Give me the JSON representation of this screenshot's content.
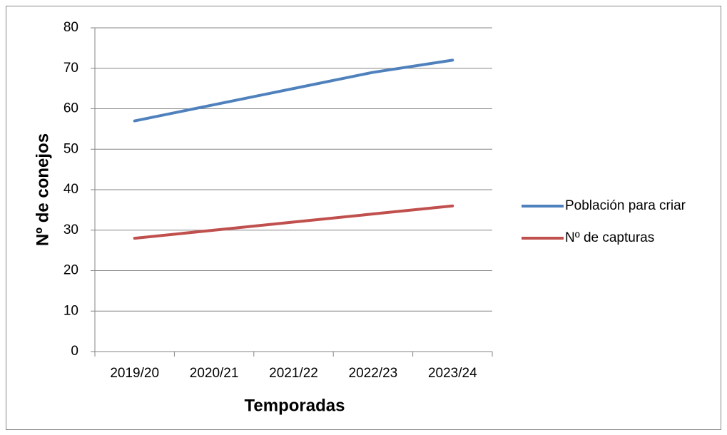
{
  "chart_data": {
    "type": "line",
    "xlabel": "Temporadas",
    "ylabel": "Nº de conejos",
    "categories": [
      "2019/20",
      "2020/21",
      "2021/22",
      "2022/23",
      "2023/24"
    ],
    "series": [
      {
        "name": "Población para criar",
        "color": "#4f81bd",
        "values": [
          57,
          61,
          65,
          69,
          72
        ]
      },
      {
        "name": "Nº de capturas",
        "color": "#c0504d",
        "values": [
          28,
          30,
          32,
          34,
          36
        ]
      }
    ],
    "ylim": [
      0,
      80
    ],
    "yticks": [
      0,
      10,
      20,
      30,
      40,
      50,
      60,
      70,
      80
    ],
    "grid": true,
    "legend": "right"
  }
}
